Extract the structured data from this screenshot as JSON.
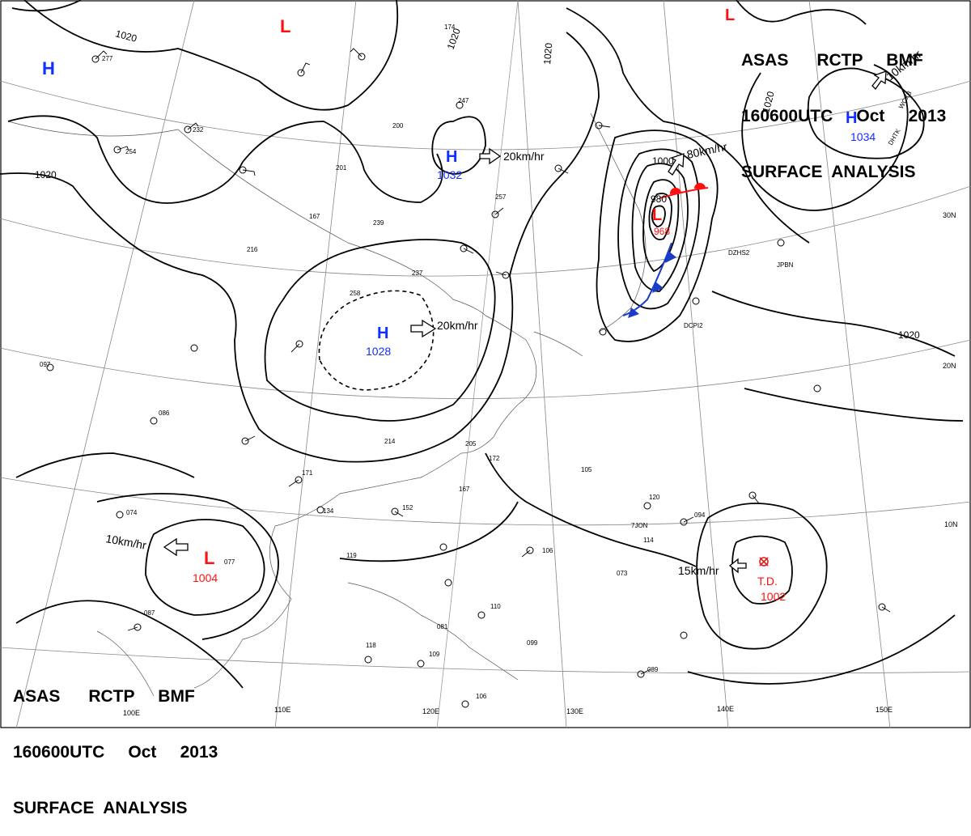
{
  "header": {
    "line1": "ASAS      RCTP     BMF",
    "line2": "160600UTC     Oct     2013",
    "line3": "SURFACE  ANALYSIS"
  },
  "grid": {
    "lon_labels": [
      "110E",
      "120E",
      "130E",
      "140E",
      "150E"
    ],
    "lat_labels": [
      "30N",
      "20N",
      "10N"
    ],
    "partial_lon_label": "100E"
  },
  "isobar_labels": [
    "1020",
    "1020",
    "1020",
    "1020",
    "1020",
    "1020",
    "1000",
    "980"
  ],
  "pressure_systems": [
    {
      "kind": "H",
      "value": "",
      "name": "high-west"
    },
    {
      "kind": "L",
      "value": "",
      "name": "low-north"
    },
    {
      "kind": "H",
      "value": "1032",
      "name": "high-1032"
    },
    {
      "kind": "H",
      "value": "1028",
      "name": "high-1028"
    },
    {
      "kind": "H",
      "value": "1034",
      "name": "high-1034"
    },
    {
      "kind": "L",
      "value": "",
      "name": "low-northeast"
    },
    {
      "kind": "L",
      "value": "968",
      "name": "low-968"
    },
    {
      "kind": "L",
      "value": "1004",
      "name": "low-1004"
    },
    {
      "kind": "T.D.",
      "value": "1002",
      "name": "tropical-depression"
    }
  ],
  "motion_labels": [
    "20km/hr",
    "20km/hr",
    "80km/hr",
    "10km/hr",
    "15km/hr",
    "10km/hr"
  ],
  "station_ids": [
    "7JON",
    "DZHS2",
    "JPBN",
    "DCPI2",
    "DHTK",
    "WCXB"
  ],
  "station_values": [
    "174",
    "247",
    "200",
    "239",
    "258",
    "237",
    "214",
    "205",
    "172",
    "167",
    "152",
    "134",
    "171",
    "119",
    "105",
    "106",
    "110",
    "099",
    "109",
    "118",
    "089",
    "094",
    "120",
    "114",
    "073",
    "077",
    "074",
    "087",
    "086",
    "097",
    "257",
    "216",
    "167",
    "201",
    "232",
    "254",
    "277",
    "106",
    "081"
  ],
  "colors": {
    "low": "#ff1010",
    "high": "#1030ff",
    "warm_front": "#ff1010",
    "cold_front": "#1a3cc8",
    "lines": "#000000"
  }
}
